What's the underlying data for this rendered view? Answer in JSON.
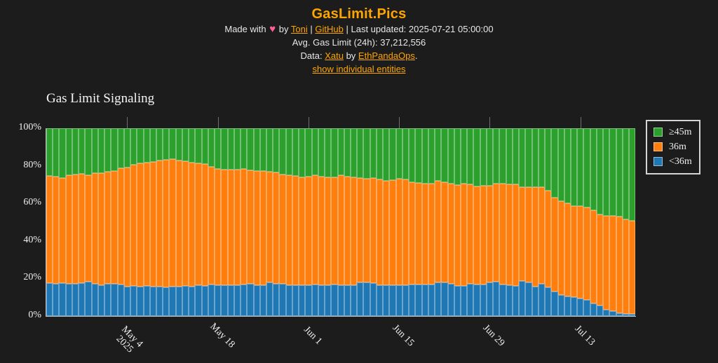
{
  "colors": {
    "background": "#1c1c1c",
    "accent_orange_link": "#ffa500",
    "text_light": "#e8e8e8",
    "heart_pink": "#ff5f96",
    "green_gte45": "#2ca02c",
    "orange_36": "#ff7f0e",
    "blue_lt36": "#1f77b4",
    "axis_spine": "#bdbdbd"
  },
  "header": {
    "title": "GasLimit.Pics",
    "heart_icon": "♥",
    "line1": {
      "made_with": "Made with",
      "by": "by",
      "link_toni": "Toni",
      "sep1": "|",
      "link_github": "GitHub",
      "sep2": "|",
      "last_updated": "Last updated: 2025-07-21 05:00:00"
    },
    "line2": "Avg. Gas Limit (24h): 37,212,556",
    "line3": {
      "data_prefix": "Data:",
      "link_xatu": "Xatu",
      "mid": "by",
      "link_ethpandaops": "EthPandaOps",
      "suffix": "."
    },
    "line4_link": "show individual entities"
  },
  "chart_data": {
    "type": "bar",
    "stacked": true,
    "title": "Gas Limit Signaling",
    "grid": false,
    "ylim": [
      0,
      100
    ],
    "legend_position": "upper right, outside plot",
    "ytick_labels": [
      "0%",
      "20%",
      "40%",
      "60%",
      "80%",
      "100%"
    ],
    "xtick_labels": [
      {
        "index": 12,
        "label": "May 4",
        "sub": "2025"
      },
      {
        "index": 26,
        "label": "May 18",
        "sub": ""
      },
      {
        "index": 40,
        "label": "Jun 1",
        "sub": ""
      },
      {
        "index": 54,
        "label": "Jun 15",
        "sub": ""
      },
      {
        "index": 68,
        "label": "Jun 29",
        "sub": ""
      },
      {
        "index": 82,
        "label": "Jul 13",
        "sub": ""
      }
    ],
    "x": [
      "2025-04-22",
      "2025-04-23",
      "2025-04-24",
      "2025-04-25",
      "2025-04-26",
      "2025-04-27",
      "2025-04-28",
      "2025-04-29",
      "2025-04-30",
      "2025-05-01",
      "2025-05-02",
      "2025-05-03",
      "2025-05-04",
      "2025-05-05",
      "2025-05-06",
      "2025-05-07",
      "2025-05-08",
      "2025-05-09",
      "2025-05-10",
      "2025-05-11",
      "2025-05-12",
      "2025-05-13",
      "2025-05-14",
      "2025-05-15",
      "2025-05-16",
      "2025-05-17",
      "2025-05-18",
      "2025-05-19",
      "2025-05-20",
      "2025-05-21",
      "2025-05-22",
      "2025-05-23",
      "2025-05-24",
      "2025-05-25",
      "2025-05-26",
      "2025-05-27",
      "2025-05-28",
      "2025-05-29",
      "2025-05-30",
      "2025-05-31",
      "2025-06-01",
      "2025-06-02",
      "2025-06-03",
      "2025-06-04",
      "2025-06-05",
      "2025-06-06",
      "2025-06-07",
      "2025-06-08",
      "2025-06-09",
      "2025-06-10",
      "2025-06-11",
      "2025-06-12",
      "2025-06-13",
      "2025-06-14",
      "2025-06-15",
      "2025-06-16",
      "2025-06-17",
      "2025-06-18",
      "2025-06-19",
      "2025-06-20",
      "2025-06-21",
      "2025-06-22",
      "2025-06-23",
      "2025-06-24",
      "2025-06-25",
      "2025-06-26",
      "2025-06-27",
      "2025-06-28",
      "2025-06-29",
      "2025-06-30",
      "2025-07-01",
      "2025-07-02",
      "2025-07-03",
      "2025-07-04",
      "2025-07-05",
      "2025-07-06",
      "2025-07-07",
      "2025-07-08",
      "2025-07-09",
      "2025-07-10",
      "2025-07-11",
      "2025-07-12",
      "2025-07-13",
      "2025-07-14",
      "2025-07-15",
      "2025-07-16",
      "2025-07-17",
      "2025-07-18",
      "2025-07-19",
      "2025-07-20",
      "2025-07-21"
    ],
    "series": [
      {
        "name": "≥45m",
        "color": "#2ca02c",
        "values": [
          25.2,
          25.8,
          26.4,
          24.9,
          24.5,
          24.2,
          24.9,
          23.9,
          24.0,
          23.3,
          22.9,
          21.4,
          20.8,
          19.5,
          18.7,
          18.4,
          18.0,
          17.1,
          16.7,
          16.5,
          17.2,
          17.6,
          18.2,
          18.8,
          19.0,
          20.5,
          21.7,
          22.0,
          22.1,
          21.9,
          21.7,
          22.3,
          22.8,
          22.6,
          23.0,
          23.4,
          24.8,
          25.1,
          25.4,
          26.1,
          25.9,
          25.1,
          25.9,
          26.3,
          26.2,
          25.1,
          25.7,
          26.1,
          26.5,
          26.8,
          26.6,
          27.2,
          27.8,
          27.5,
          26.8,
          27.2,
          28.8,
          29.0,
          29.3,
          29.3,
          28.0,
          28.8,
          29.3,
          30.1,
          29.6,
          30.0,
          30.9,
          30.7,
          30.6,
          29.4,
          29.4,
          29.7,
          30.0,
          31.5,
          31.2,
          31.2,
          31.5,
          33.3,
          37.0,
          38.9,
          40.1,
          41.4,
          41.4,
          42.0,
          43.8,
          46.0,
          46.5,
          46.8,
          47.0,
          48.5,
          49.4
        ]
      },
      {
        "name": "36m",
        "color": "#ff7f0e",
        "values": [
          57.2,
          57.2,
          56.0,
          58.1,
          58.3,
          58.4,
          56.9,
          59.1,
          59.6,
          59.7,
          60.1,
          61.9,
          63.5,
          64.5,
          65.5,
          65.4,
          66.5,
          67.1,
          68.0,
          67.7,
          67.3,
          66.2,
          66.0,
          64.8,
          65.1,
          62.7,
          61.8,
          61.7,
          61.4,
          61.7,
          61.7,
          60.6,
          60.7,
          60.8,
          59.1,
          59.6,
          58.1,
          58.3,
          58.2,
          57.4,
          57.7,
          58.0,
          57.6,
          57.3,
          57.2,
          58.4,
          57.9,
          57.3,
          55.7,
          55.3,
          55.9,
          56.3,
          55.8,
          56.0,
          56.6,
          56.3,
          54.4,
          54.2,
          54.0,
          53.9,
          54.0,
          53.3,
          53.4,
          53.7,
          54.4,
          52.7,
          52.4,
          52.4,
          51.5,
          52.5,
          53.9,
          53.9,
          54.0,
          50.0,
          50.9,
          53.1,
          51.2,
          51.5,
          50.0,
          50.0,
          49.4,
          48.7,
          49.3,
          49.4,
          49.4,
          48.4,
          50.0,
          50.7,
          51.4,
          50.3,
          49.6
        ]
      },
      {
        "name": "<36m",
        "color": "#1f77b4",
        "values": [
          17.6,
          17.0,
          17.6,
          17.0,
          17.2,
          17.4,
          18.2,
          17.0,
          16.4,
          17.0,
          17.0,
          16.7,
          15.7,
          16.0,
          15.8,
          16.2,
          15.5,
          15.8,
          15.3,
          15.8,
          15.5,
          16.2,
          15.8,
          16.4,
          15.9,
          16.8,
          16.5,
          16.3,
          16.5,
          16.4,
          16.6,
          17.1,
          16.5,
          16.6,
          17.9,
          17.0,
          17.1,
          16.6,
          16.4,
          16.5,
          16.4,
          16.9,
          16.5,
          16.4,
          16.6,
          16.5,
          16.4,
          16.6,
          17.8,
          17.9,
          17.5,
          16.5,
          16.4,
          16.5,
          16.6,
          16.5,
          16.8,
          16.8,
          16.7,
          16.8,
          18.0,
          17.9,
          17.3,
          16.2,
          16.0,
          17.3,
          16.7,
          16.9,
          17.9,
          18.1,
          16.7,
          16.4,
          16.0,
          18.5,
          17.9,
          15.7,
          17.3,
          15.2,
          13.0,
          11.1,
          10.5,
          9.9,
          9.3,
          8.6,
          6.8,
          5.6,
          3.5,
          2.5,
          1.6,
          1.2,
          1.0
        ]
      }
    ]
  }
}
